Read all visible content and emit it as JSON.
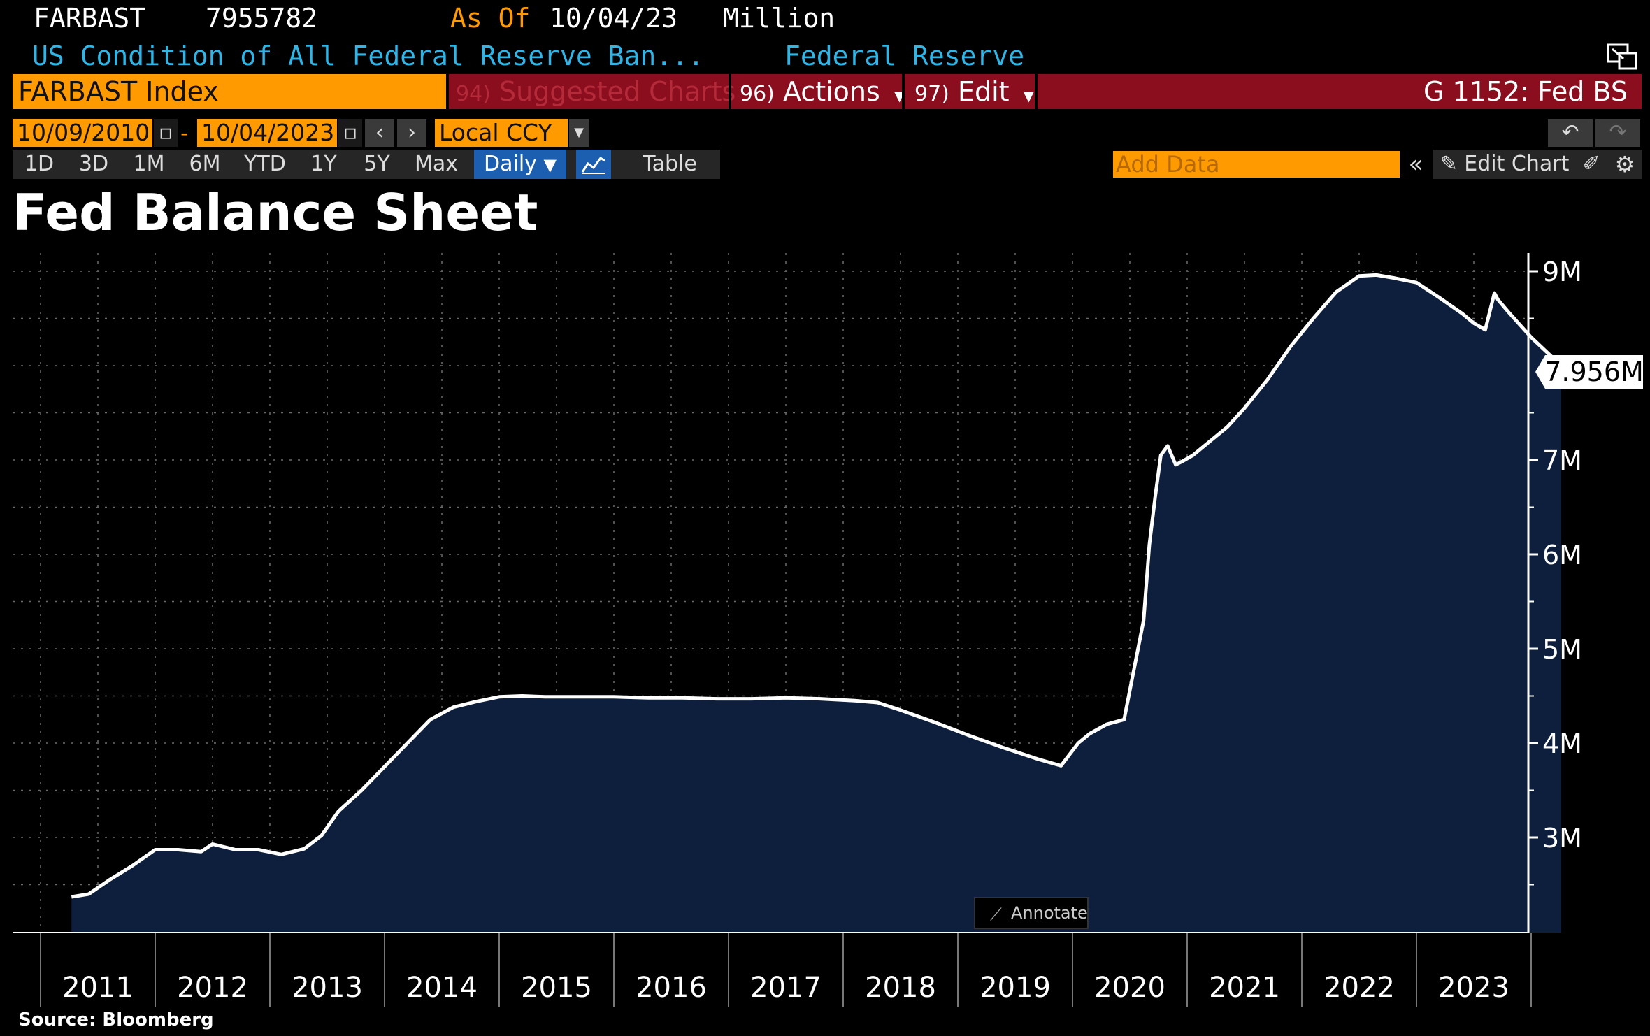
{
  "header": {
    "ticker": "FARBAST",
    "last_value": "7955782",
    "as_of_label": "As Of",
    "as_of_date": "10/04/23",
    "units": "Million",
    "description": "US Condition of All Federal Reserve Ban...",
    "source_name": "Federal Reserve"
  },
  "toolbar": {
    "security": "FARBAST Index",
    "suggested_num": "94)",
    "suggested_label": "Suggested Charts",
    "actions_num": "96)",
    "actions_label": "Actions",
    "edit_num": "97)",
    "edit_label": "Edit",
    "page_code": "G 1152: Fed BS"
  },
  "date_range": {
    "start": "10/09/2010",
    "dash": "-",
    "end": "10/04/2023",
    "currency": "Local CCY"
  },
  "periods": [
    "1D",
    "3D",
    "1M",
    "6M",
    "YTD",
    "1Y",
    "5Y",
    "Max"
  ],
  "frequency": "Daily",
  "table_label": "Table",
  "add_data_placeholder": "Add Data",
  "edit_chart_label": "Edit Chart",
  "annotate_label": "Annotate",
  "source": "Source: Bloomberg",
  "colors": {
    "orange": "#ff9a00",
    "red_bar": "#8b0e1e",
    "cyan_text": "#2fb6e6",
    "area_fill": "#0d1f3c",
    "line": "#ffffff"
  },
  "chart_data": {
    "type": "area",
    "title": "Fed Balance Sheet",
    "x_tick_labels": [
      "2011",
      "2012",
      "2013",
      "2014",
      "2015",
      "2016",
      "2017",
      "2018",
      "2019",
      "2020",
      "2021",
      "2022",
      "2023"
    ],
    "y_tick_labels": [
      "3M",
      "4M",
      "5M",
      "6M",
      "7M",
      "9M"
    ],
    "ylim": [
      2.1,
      9.2
    ],
    "y_unit": "Million (millions of USD)",
    "last_value_label": "7.956M",
    "last_value": 7.956,
    "grid": true,
    "series": [
      {
        "x": [
          2010.77,
          2010.92,
          2011.1,
          2011.3,
          2011.5,
          2011.7,
          2011.9,
          2012.0,
          2012.2,
          2012.4,
          2012.6,
          2012.8,
          2012.95,
          2013.1,
          2013.3,
          2013.5,
          2013.7,
          2013.9,
          2014.1,
          2014.3,
          2014.5,
          2014.7,
          2014.9,
          2015.2,
          2015.5,
          2015.8,
          2016.1,
          2016.4,
          2016.7,
          2017.0,
          2017.3,
          2017.6,
          2017.8,
          2018.0,
          2018.3,
          2018.6,
          2018.9,
          2019.2,
          2019.4,
          2019.55,
          2019.65,
          2019.8,
          2019.95,
          2020.12,
          2020.17,
          2020.22,
          2020.27,
          2020.33,
          2020.4,
          2020.45,
          2020.55,
          2020.7,
          2020.85,
          2021.0,
          2021.2,
          2021.4,
          2021.6,
          2021.8,
          2022.0,
          2022.15,
          2022.3,
          2022.5,
          2022.7,
          2022.9,
          2023.0,
          2023.1,
          2023.18,
          2023.21,
          2023.3,
          2023.5,
          2023.7,
          2023.76
        ],
        "y": [
          2.37,
          2.4,
          2.55,
          2.7,
          2.87,
          2.87,
          2.85,
          2.93,
          2.87,
          2.87,
          2.82,
          2.88,
          3.02,
          3.28,
          3.5,
          3.75,
          4.0,
          4.25,
          4.38,
          4.44,
          4.49,
          4.5,
          4.49,
          4.49,
          4.49,
          4.48,
          4.48,
          4.47,
          4.47,
          4.48,
          4.47,
          4.45,
          4.43,
          4.35,
          4.22,
          4.08,
          3.95,
          3.83,
          3.76,
          4.0,
          4.1,
          4.2,
          4.25,
          5.3,
          6.1,
          6.6,
          7.05,
          7.15,
          6.95,
          6.98,
          7.05,
          7.2,
          7.35,
          7.55,
          7.85,
          8.2,
          8.5,
          8.78,
          8.95,
          8.96,
          8.93,
          8.88,
          8.72,
          8.55,
          8.45,
          8.38,
          8.77,
          8.7,
          8.57,
          8.3,
          8.07,
          7.956
        ]
      }
    ]
  }
}
